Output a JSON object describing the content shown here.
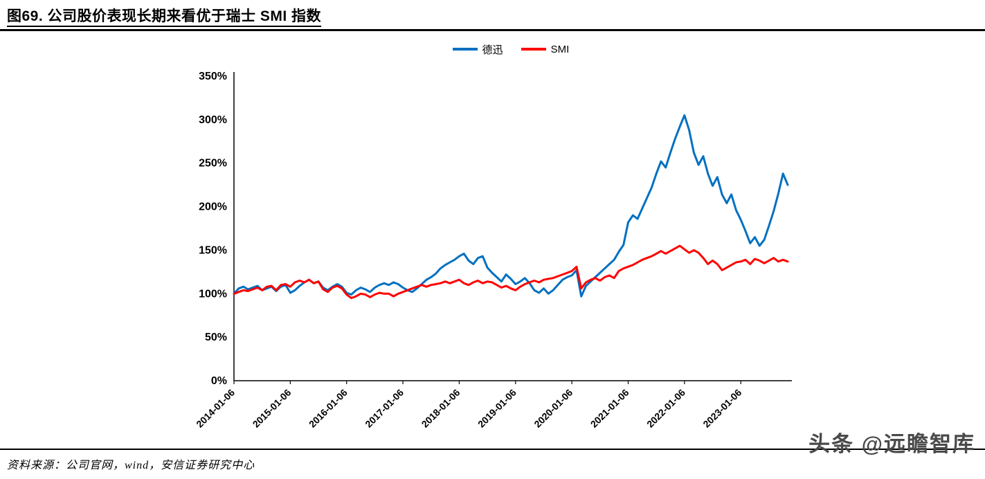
{
  "figure": {
    "title": "图69. 公司股价表现长期来看优于瑞士 SMI 指数",
    "source": "资料来源：公司官网，wind，安信证券研究中心",
    "watermark": "头条 @远瞻智库"
  },
  "chart_data": {
    "type": "line",
    "title": "公司股价表现长期来看优于瑞士 SMI 指数",
    "xlabel": "",
    "ylabel": "",
    "ylim": [
      0,
      350
    ],
    "y_ticks": [
      0,
      50,
      100,
      150,
      200,
      250,
      300,
      350
    ],
    "y_tick_suffix": "%",
    "grid": false,
    "legend_position": "top-center",
    "x_tick_labels": [
      "2014-01-06",
      "2015-01-06",
      "2016-01-06",
      "2017-01-06",
      "2018-01-06",
      "2019-01-06",
      "2020-01-06",
      "2021-01-06",
      "2022-01-06",
      "2023-01-06"
    ],
    "x_tick_indices": [
      0,
      12,
      24,
      36,
      48,
      60,
      72,
      84,
      96,
      108
    ],
    "x_resolution": "monthly (estimated from daily series)",
    "series": [
      {
        "name": "德迅",
        "color": "#0070C0",
        "values": [
          100,
          106,
          108,
          105,
          107,
          109,
          104,
          106,
          108,
          103,
          108,
          110,
          101,
          104,
          109,
          113,
          116,
          112,
          114,
          107,
          104,
          108,
          111,
          108,
          101,
          99,
          104,
          107,
          105,
          102,
          107,
          110,
          112,
          110,
          113,
          111,
          107,
          104,
          102,
          106,
          111,
          116,
          119,
          123,
          129,
          133,
          136,
          139,
          143,
          146,
          138,
          134,
          141,
          143,
          130,
          124,
          119,
          114,
          122,
          117,
          111,
          114,
          118,
          112,
          104,
          101,
          106,
          100,
          104,
          110,
          116,
          119,
          121,
          127,
          97,
          109,
          114,
          119,
          124,
          129,
          134,
          139,
          148,
          156,
          182,
          190,
          186,
          198,
          210,
          222,
          238,
          252,
          245,
          262,
          278,
          292,
          305,
          288,
          262,
          248,
          258,
          238,
          224,
          234,
          214,
          204,
          214,
          196,
          185,
          172,
          158,
          165,
          155,
          162,
          178,
          195,
          215,
          238,
          225
        ]
      },
      {
        "name": "SMI",
        "color": "#FF0000",
        "values": [
          100,
          102,
          104,
          103,
          105,
          107,
          104,
          108,
          109,
          104,
          110,
          111,
          108,
          113,
          115,
          113,
          116,
          112,
          114,
          105,
          102,
          107,
          109,
          106,
          99,
          95,
          97,
          100,
          99,
          96,
          99,
          101,
          100,
          100,
          97,
          100,
          102,
          104,
          106,
          108,
          110,
          108,
          110,
          111,
          112,
          114,
          112,
          114,
          116,
          112,
          110,
          113,
          115,
          112,
          114,
          113,
          110,
          107,
          109,
          106,
          104,
          108,
          111,
          113,
          115,
          113,
          116,
          117,
          118,
          120,
          122,
          124,
          126,
          131,
          106,
          113,
          116,
          118,
          115,
          119,
          121,
          118,
          126,
          129,
          131,
          133,
          136,
          139,
          141,
          143,
          146,
          149,
          146,
          149,
          152,
          155,
          151,
          147,
          150,
          147,
          141,
          134,
          138,
          134,
          127,
          130,
          133,
          136,
          137,
          139,
          134,
          140,
          138,
          135,
          138,
          141,
          137,
          139,
          137
        ]
      }
    ]
  }
}
